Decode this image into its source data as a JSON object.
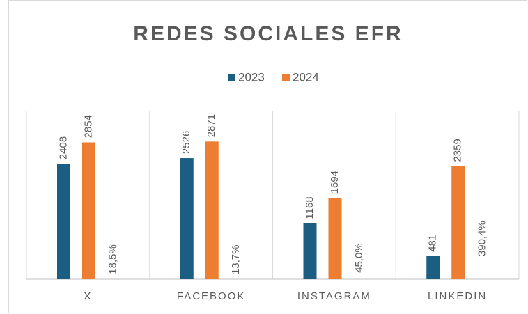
{
  "chart_data": {
    "type": "bar",
    "title": "REDES SOCIALES EFR",
    "categories": [
      "X",
      "FACEBOOK",
      "INSTAGRAM",
      "LINKEDIN"
    ],
    "series": [
      {
        "name": "2023",
        "color": "#1b5e82",
        "values": [
          2408,
          2526,
          1168,
          481
        ]
      },
      {
        "name": "2024",
        "color": "#ed7d31",
        "values": [
          2854,
          2871,
          1694,
          2359
        ]
      }
    ],
    "change": {
      "values": [
        18.5,
        13.7,
        45.0,
        390.4
      ],
      "value_labels": [
        "18,5%",
        "13,7%",
        "45,0%",
        "390,4%"
      ]
    },
    "ylim": [
      0,
      3500
    ],
    "legend": "top"
  }
}
